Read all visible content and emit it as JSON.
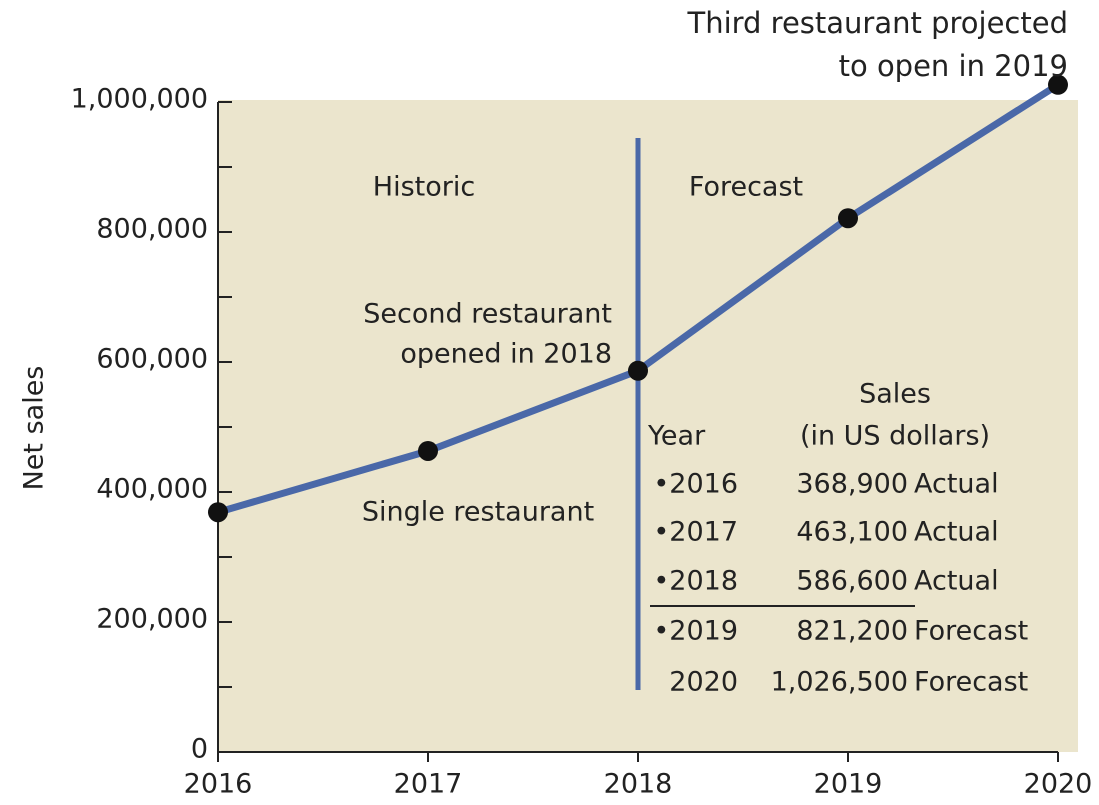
{
  "chart_data": {
    "type": "line",
    "y_axis_label": "Net sales",
    "x": [
      2016,
      2017,
      2018,
      2019,
      2020
    ],
    "series": [
      {
        "name": "Net sales",
        "color": "#4a68a8",
        "values": [
          368900,
          463100,
          586600,
          821200,
          1026500
        ],
        "value_labels": [
          "368,900",
          "463,100",
          "586,600",
          "821,200",
          "1,026,500"
        ]
      }
    ],
    "xlim": [
      2016,
      2020
    ],
    "xticks": [
      2016,
      2017,
      2018,
      2019,
      2020
    ],
    "ylim": [
      0,
      1000000
    ],
    "yticks": [
      0,
      {
        "value": 200000,
        "label": "200,000"
      },
      {
        "value": 400000,
        "label": "400,000"
      },
      {
        "value": 600000,
        "label": "600,000"
      },
      {
        "value": 800000,
        "label": "800,000"
      },
      {
        "value": 1000000,
        "label": "1,000,000"
      }
    ],
    "yminor_ticks": [
      100000,
      300000,
      500000,
      700000,
      900000
    ],
    "divider_x": 2018,
    "annotations": {
      "top": [
        "Third restaurant projected",
        "to open in 2019"
      ],
      "historic": "Historic",
      "forecast": "Forecast",
      "second": [
        "Second restaurant",
        "opened in 2018"
      ],
      "single": "Single restaurant"
    },
    "table": {
      "header": {
        "year": "Year",
        "sales": [
          "Sales",
          "(in US dollars)"
        ]
      },
      "rows": [
        {
          "year": "•2016",
          "status": "Actual"
        },
        {
          "year": "•2017",
          "status": "Actual"
        },
        {
          "year": "•2018",
          "status": "Actual"
        },
        {
          "year": "•2019",
          "status": "Forecast"
        },
        {
          "year": "2020",
          "status": "Forecast"
        }
      ]
    }
  }
}
